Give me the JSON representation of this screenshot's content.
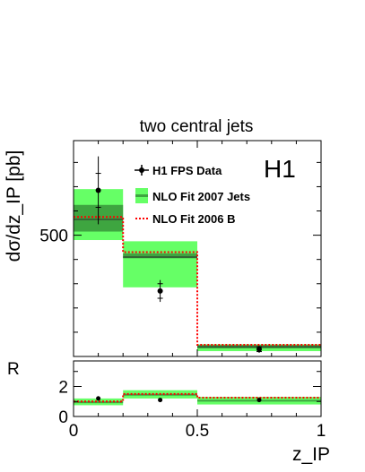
{
  "chart_data": [
    {
      "type": "bar",
      "panel": "main",
      "title": "two central jets",
      "experiment_label": "H1",
      "ylabel": "dσ/dz_IP [pb]",
      "xlabel": "",
      "xlim": [
        0,
        1
      ],
      "ylim": [
        0,
        890
      ],
      "y_tick_labels": [
        {
          "value": 500,
          "label": "500"
        }
      ],
      "bins": [
        [
          0,
          0.2
        ],
        [
          0.2,
          0.5
        ],
        [
          0.5,
          1.0
        ]
      ],
      "series": [
        {
          "name": "H1 FPS Data",
          "kind": "points",
          "x": [
            0.1,
            0.35,
            0.75
          ],
          "y": [
            685,
            270,
            30
          ],
          "stat_err": [
            70,
            30,
            10
          ],
          "tot_err": [
            140,
            45,
            15
          ]
        },
        {
          "name": "NLO Fit 2007 Jets",
          "kind": "band",
          "y": [
            565,
            410,
            40
          ],
          "scale_band": [
            [
              480,
              690
            ],
            [
              285,
              475
            ],
            [
              22,
              50
            ]
          ],
          "pdf_band": [
            [
              515,
              625
            ],
            [
              405,
              425
            ],
            [
              33,
              47
            ]
          ],
          "color_light": "#66ff66",
          "color_dark": "#3ea540"
        },
        {
          "name": "NLO Fit 2006 B",
          "kind": "line",
          "y": [
            575,
            430,
            48
          ],
          "color": "#ff0000"
        }
      ]
    },
    {
      "type": "bar",
      "panel": "ratio",
      "ylabel": "R",
      "xlabel": "z_IP",
      "xlim": [
        0,
        1
      ],
      "ylim": [
        0,
        3.7
      ],
      "x_tick_labels": [
        "0",
        "0.5",
        "1"
      ],
      "y_tick_labels": [
        "0",
        "2"
      ],
      "data_ratio": [
        1.2,
        1.1,
        1.1
      ],
      "data_ratio_err": [
        0.15,
        0.12,
        0.1
      ],
      "band_ratio": [
        [
          0.75,
          1.2
        ],
        [
          1.2,
          1.75
        ],
        [
          0.8,
          1.3
        ]
      ],
      "band_center": [
        0.95,
        1.45,
        1.05
      ],
      "line_ratio": [
        1.0,
        1.5,
        1.25
      ]
    }
  ]
}
